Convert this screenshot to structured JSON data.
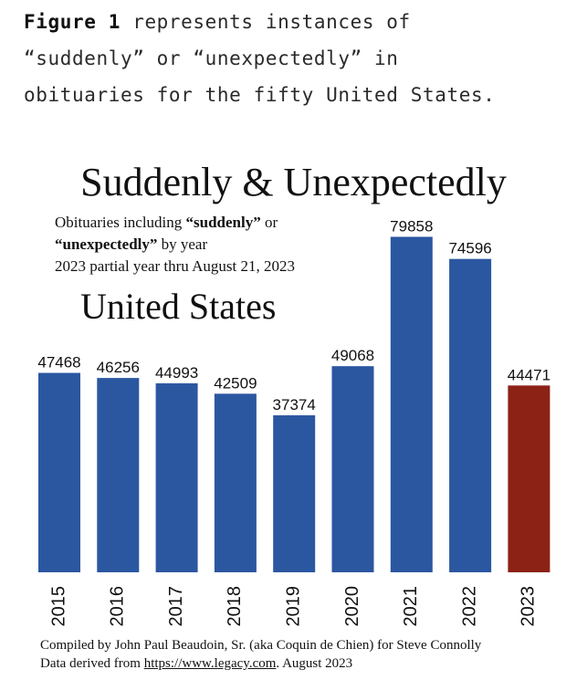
{
  "intro": {
    "figure_label": "Figure 1",
    "line1_rest": " represents instances of",
    "line2": "“suddenly” or “unexpectedly” in",
    "line3": "obituaries for the fifty United States."
  },
  "chart_data": {
    "type": "bar",
    "title": "Suddenly & Unexpectedly",
    "subtitle_parts": {
      "a": "Obituaries including ",
      "b": "“suddenly”",
      "c": " or",
      "d": "“unexpectedly”",
      "e": " by year",
      "line3": "2023 partial year thru August 21, 2023"
    },
    "region_label": "United States",
    "categories": [
      "2015",
      "2016",
      "2017",
      "2018",
      "2019",
      "2020",
      "2021",
      "2022",
      "2023"
    ],
    "values": [
      47468,
      46256,
      44993,
      42509,
      37374,
      49068,
      79858,
      74596,
      44471
    ],
    "colors": [
      "#2b57a1",
      "#2b57a1",
      "#2b57a1",
      "#2b57a1",
      "#2b57a1",
      "#2b57a1",
      "#2b57a1",
      "#2b57a1",
      "#8b2215"
    ],
    "bar_color": "#2b57a1",
    "highlight_color": "#8b2215",
    "ylim": [
      0,
      83000
    ],
    "grid": false,
    "legend": "none",
    "xlabel": "",
    "ylabel": ""
  },
  "footer": {
    "line1": "Compiled by John Paul Beaudoin, Sr. (aka Coquin de Chien) for Steve Connolly",
    "line2_prefix": "Data derived from ",
    "line2_link": "https://www.legacy.com",
    "line2_suffix": ". August 2023"
  }
}
